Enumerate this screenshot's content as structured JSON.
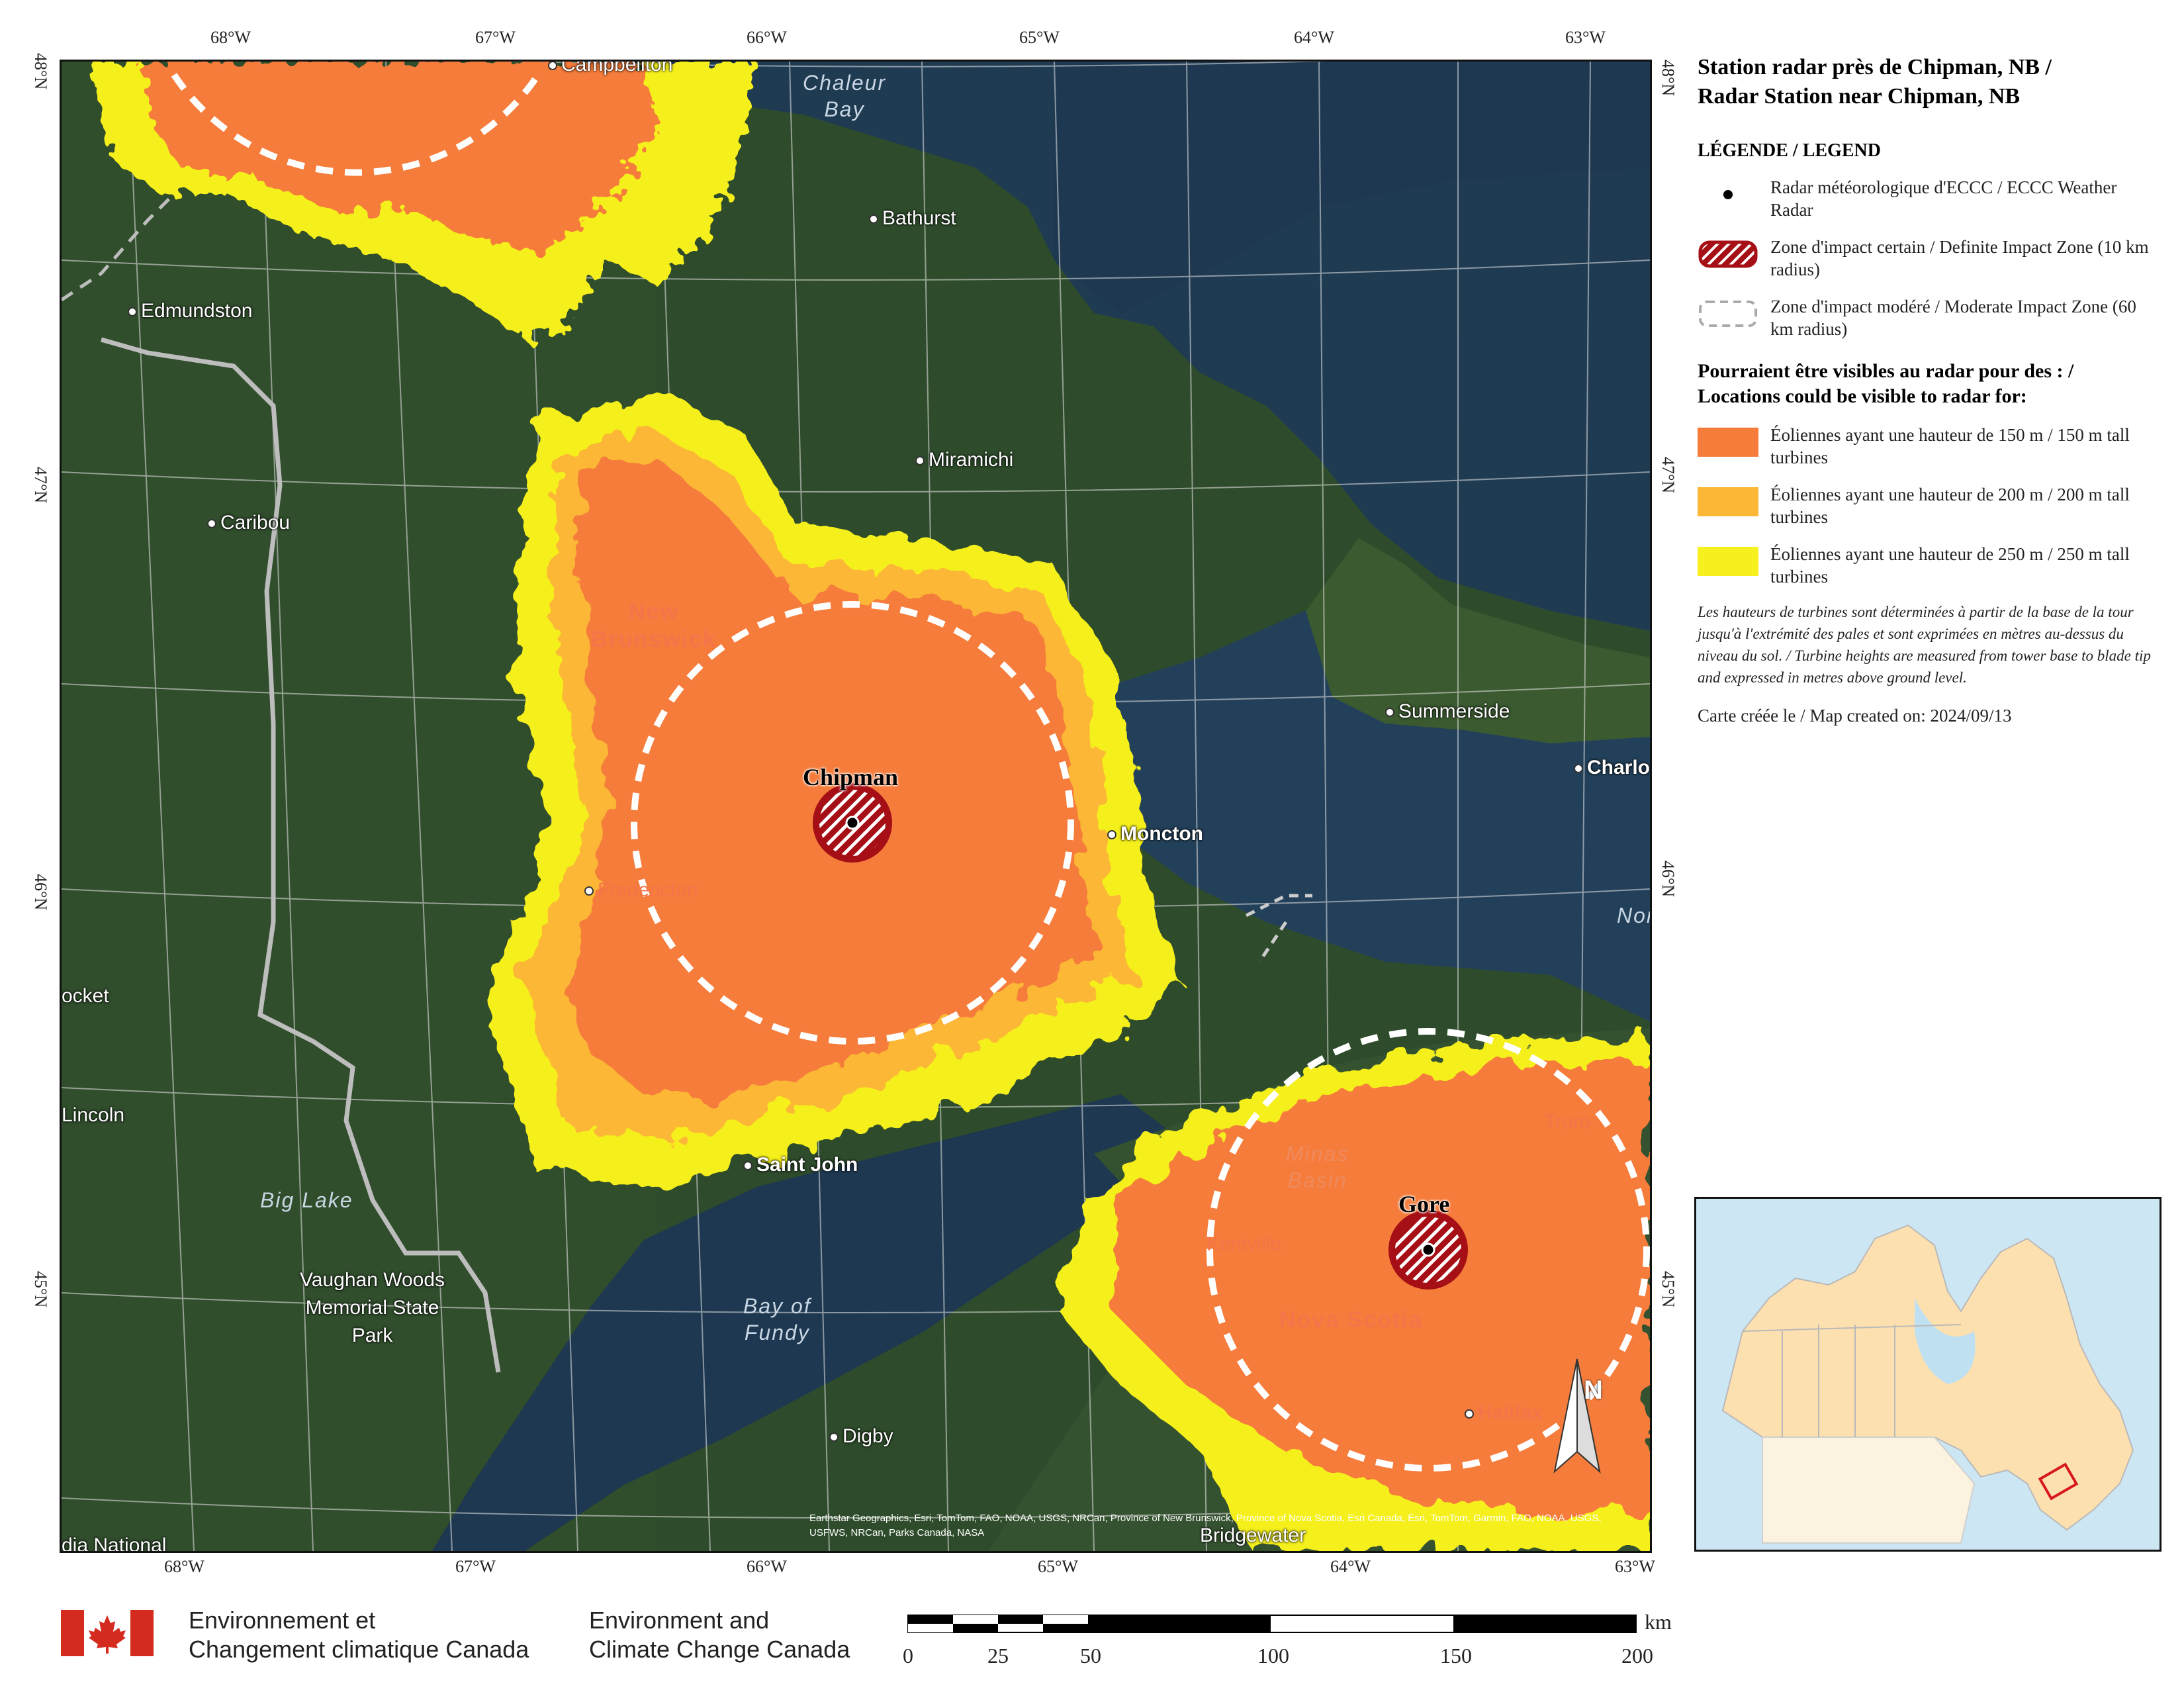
{
  "title": {
    "line1": "Station radar près de Chipman, NB /",
    "line2": "Radar Station near Chipman, NB"
  },
  "legend": {
    "heading": "LÉGENDE / LEGEND",
    "radar_label": "Radar météorologique d'ECCC / ECCC Weather Radar",
    "definite_label": "Zone d'impact certain / Definite Impact Zone (10 km radius)",
    "moderate_label": "Zone d'impact modéré / Moderate Impact Zone (60 km radius)",
    "visibility_heading_line1": "Pourraient être visibles au radar pour des : /",
    "visibility_heading_line2": "Locations could be visible to radar for:",
    "t150": "Éoliennes ayant une hauteur de 150 m / 150 m tall turbines",
    "t200": "Éoliennes ayant une hauteur de 200 m / 200 m tall turbines",
    "t250": "Éoliennes ayant une hauteur de 250 m / 250 m tall turbines",
    "colors": {
      "t150": "#f57c3a",
      "t200": "#fbb735",
      "t250": "#f5f01e",
      "definite": "#a50f15"
    },
    "note": "Les hauteurs de turbines sont déterminées à partir de la base de la tour jusqu'à l'extrémité des pales et sont exprimées en mètres au-dessus du niveau du sol. / Turbine heights are measured from tower base to blade tip and expressed in metres above ground level.",
    "created": "Carte créée le / Map created on: 2024/09/13"
  },
  "grid_labels": {
    "top": [
      "68°W",
      "67°W",
      "66°W",
      "65°W",
      "64°W",
      "63°W"
    ],
    "bottom": [
      "68°W",
      "67°W",
      "66°W",
      "65°W",
      "64°W",
      "63°W"
    ],
    "left": [
      "48°N",
      "47°N",
      "46°N",
      "45°N"
    ],
    "right": [
      "48°N",
      "47°N",
      "46°N",
      "45°N"
    ]
  },
  "places": {
    "campbellton": "Campbellton",
    "bathurst": "Bathurst",
    "edmundston": "Edmundston",
    "miramichi": "Miramichi",
    "caribou": "Caribou",
    "summerside": "Summerside",
    "charlo": "Charlo",
    "moncton": "Moncton",
    "fredericton": "Fredericton",
    "locket": "ocket",
    "lincoln": "Lincoln",
    "saint_john": "Saint John",
    "truro": "Truro",
    "kentville": "Kentville",
    "halifax": "Halifax",
    "digby": "Digby",
    "bridgewater": "Bridgewater",
    "national": "dia National",
    "vaughan": [
      "Vaughan Woods",
      "Memorial State",
      "Park"
    ]
  },
  "water": {
    "chaleur": [
      "Chaleur",
      "Bay"
    ],
    "big_lake": "Big Lake",
    "fundy": [
      "Bay of",
      "Fundy"
    ],
    "minas": [
      "Minas",
      "Basin"
    ],
    "nor": "Nor"
  },
  "regions": {
    "nb": [
      "New",
      "Brunswick"
    ],
    "ns": "Nova Scotia"
  },
  "radars": {
    "chipman": "Chipman",
    "gore": "Gore"
  },
  "north_arrow": "N",
  "attribution": "Earthstar Geographics, Esri, TomTom, FAO, NOAA, USGS, NRCan, Province of New Brunswick, Province of Nova Scotia, Esri Canada, Esri, TomTom, Garmin, FAO, NOAA, USGS, USFWS, NRCan, Parks Canada, NASA",
  "footer": {
    "fr_line1": "Environnement et",
    "fr_line2": "Changement climatique Canada",
    "en_line1": "Environment and",
    "en_line2": "Climate Change Canada"
  },
  "scalebar": {
    "unit": "km",
    "ticks": [
      "0",
      "25",
      "50",
      "100",
      "150",
      "200"
    ]
  }
}
